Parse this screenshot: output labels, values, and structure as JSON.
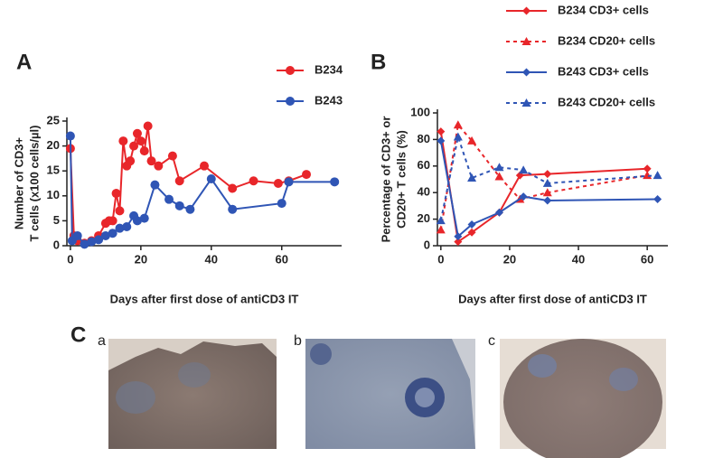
{
  "chart_data": [
    {
      "type": "line",
      "panel": "A",
      "xlabel": "Days after first dose of antiCD3 IT",
      "ylabel": [
        "Number of CD3+",
        "T cells (x100 cells/µl)"
      ],
      "xlim": [
        -1,
        77
      ],
      "xticks": [
        0,
        20,
        40,
        60
      ],
      "ylim": [
        0,
        25
      ],
      "yticks": [
        0,
        5,
        10,
        15,
        20,
        25
      ],
      "series": [
        {
          "name": "B234",
          "color": "#e8262a",
          "marker": "circle",
          "dashed": false,
          "x": [
            0,
            1,
            2,
            4,
            6,
            8,
            10,
            11,
            12,
            13,
            14,
            15,
            16,
            17,
            18,
            19,
            20,
            21,
            22,
            23,
            25,
            29,
            31,
            38,
            46,
            52,
            59,
            62,
            67
          ],
          "values": [
            19.5,
            2,
            1,
            0.5,
            1,
            2,
            4.5,
            5,
            5,
            10.5,
            7,
            21,
            16,
            17,
            20,
            22.5,
            21,
            19,
            24,
            17,
            16,
            18,
            13,
            16,
            11.5,
            13,
            12.5,
            13,
            14.3
          ]
        },
        {
          "name": "B243",
          "color": "#2f55b5",
          "marker": "circle",
          "dashed": false,
          "x": [
            0,
            0.5,
            2,
            4,
            6,
            8,
            10,
            12,
            14,
            16,
            18,
            19,
            21,
            24,
            28,
            31,
            34,
            40,
            46,
            60,
            62,
            75
          ],
          "values": [
            22,
            1,
            2,
            0.3,
            0.8,
            1.2,
            2,
            2.5,
            3.5,
            3.8,
            6,
            5,
            5.5,
            12.2,
            9.3,
            8,
            7.3,
            13.4,
            7.3,
            8.5,
            12.8,
            12.8
          ]
        }
      ]
    },
    {
      "type": "line",
      "panel": "B",
      "xlabel": "Days after first dose of antiCD3 IT",
      "ylabel": [
        "Percentage of CD3+ or",
        "CD20+ T cells (%)"
      ],
      "xlim": [
        -1,
        66
      ],
      "xticks": [
        0,
        20,
        40,
        60
      ],
      "ylim": [
        0,
        100
      ],
      "yticks": [
        0,
        20,
        40,
        60,
        80,
        100
      ],
      "series": [
        {
          "name": "B234 CD3+ cells",
          "color": "#e8262a",
          "marker": "diamond",
          "dashed": false,
          "x": [
            0,
            5,
            9,
            17,
            23,
            31,
            60
          ],
          "values": [
            86,
            3,
            10,
            25,
            53,
            54,
            58
          ]
        },
        {
          "name": "B234 CD20+ cells",
          "color": "#e8262a",
          "marker": "triangle",
          "dashed": true,
          "x": [
            0,
            5,
            9,
            17,
            23,
            31,
            60
          ],
          "values": [
            12,
            91,
            79,
            52,
            35,
            40,
            53
          ]
        },
        {
          "name": "B243 CD3+ cells",
          "color": "#2f55b5",
          "marker": "diamond",
          "dashed": false,
          "x": [
            0,
            5,
            9,
            17,
            24,
            31,
            63
          ],
          "values": [
            79,
            7,
            16,
            25,
            37,
            34,
            35
          ]
        },
        {
          "name": "B243 CD20+ cells",
          "color": "#2f55b5",
          "marker": "triangle",
          "dashed": true,
          "x": [
            0,
            5,
            9,
            17,
            24,
            31,
            63
          ],
          "values": [
            19,
            82,
            51,
            59,
            57,
            47,
            53
          ]
        }
      ]
    }
  ],
  "panel_c": {
    "label": "C",
    "images": [
      "a",
      "b",
      "c"
    ]
  }
}
